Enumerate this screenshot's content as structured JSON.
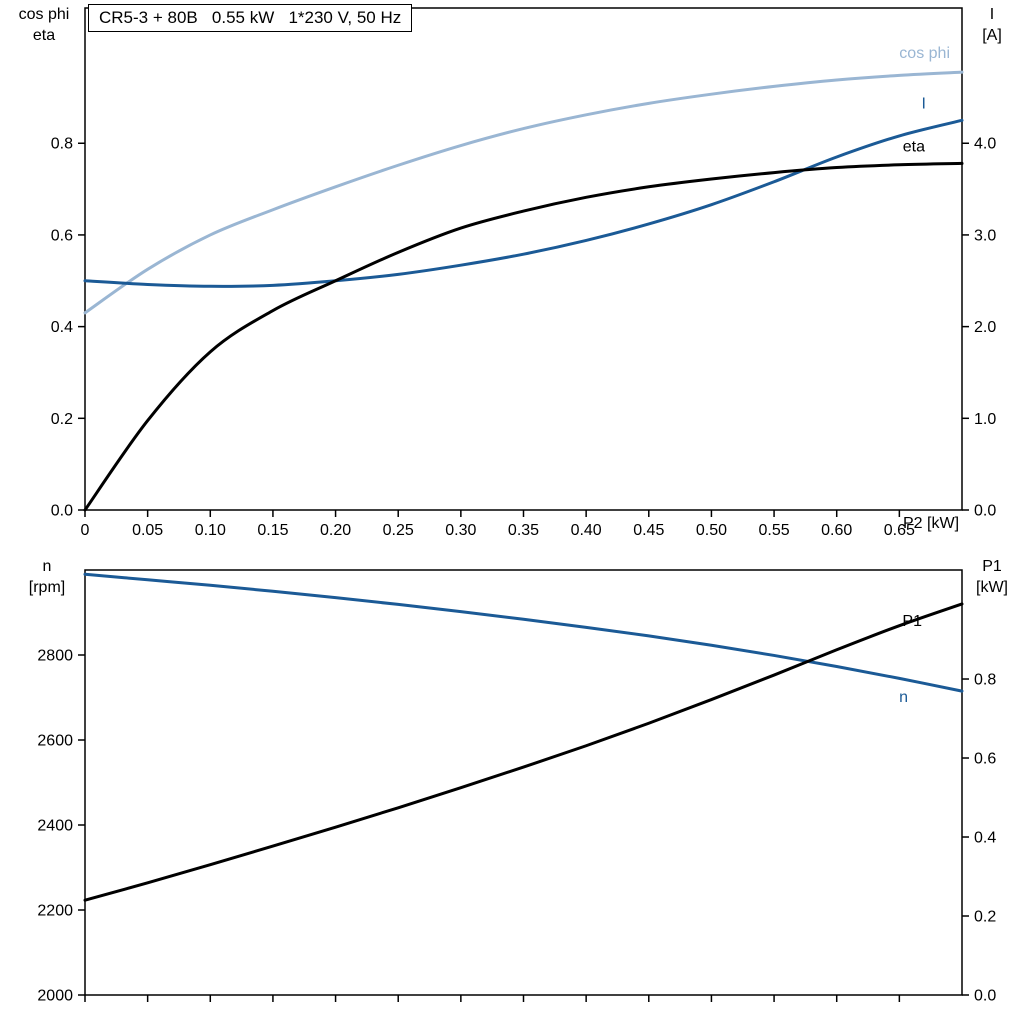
{
  "chart_data": [
    {
      "type": "line",
      "panel": "top",
      "title_box": "CR5-3 + 80B   0.55 kW   1*230 V, 50 Hz",
      "x_axis_label": "P2 [kW]",
      "x_range": [
        0,
        0.7
      ],
      "x": [
        0,
        0.05,
        0.1,
        0.15,
        0.2,
        0.25,
        0.3,
        0.35,
        0.4,
        0.45,
        0.5,
        0.55,
        0.6,
        0.65,
        0.7
      ],
      "x_ticks": [
        0,
        0.05,
        0.1,
        0.15,
        0.2,
        0.25,
        0.3,
        0.35,
        0.4,
        0.45,
        0.5,
        0.55,
        0.6,
        0.65
      ],
      "x_tick_labels": [
        "0",
        "0.05",
        "0.10",
        "0.15",
        "0.20",
        "0.25",
        "0.30",
        "0.35",
        "0.40",
        "0.45",
        "0.50",
        "0.55",
        "0.60",
        "0.65"
      ],
      "left_axis": {
        "title": [
          "cos phi",
          "eta"
        ],
        "range": [
          0,
          1.095
        ],
        "ticks": [
          0,
          0.2,
          0.4,
          0.6,
          0.8
        ],
        "tick_labels": [
          "0.0",
          "0.2",
          "0.4",
          "0.6",
          "0.8"
        ]
      },
      "right_axis": {
        "title": [
          "I",
          "[A]"
        ],
        "range": [
          0,
          5.475
        ],
        "ticks": [
          0,
          1,
          2,
          3,
          4
        ],
        "tick_labels": [
          "0.0",
          "1.0",
          "2.0",
          "3.0",
          "4.0"
        ]
      },
      "series": [
        {
          "name": "cos phi",
          "axis": "left",
          "color": "#9ab6d3",
          "label_offset": [
            -12,
            -14
          ],
          "values": [
            0.43,
            0.525,
            0.6,
            0.655,
            0.705,
            0.752,
            0.795,
            0.832,
            0.862,
            0.887,
            0.907,
            0.924,
            0.938,
            0.948,
            0.955
          ]
        },
        {
          "name": "I",
          "axis": "right",
          "color": "#1b5a96",
          "label_offset": [
            -36,
            -12
          ],
          "values": [
            2.5,
            2.46,
            2.44,
            2.45,
            2.5,
            2.57,
            2.67,
            2.79,
            2.94,
            3.12,
            3.33,
            3.58,
            3.85,
            4.08,
            4.25
          ]
        },
        {
          "name": "eta",
          "axis": "left",
          "color": "#000000",
          "label_offset": [
            -37,
            -12
          ],
          "values": [
            0,
            0.195,
            0.345,
            0.435,
            0.5,
            0.562,
            0.615,
            0.652,
            0.682,
            0.705,
            0.722,
            0.736,
            0.747,
            0.753,
            0.756
          ]
        }
      ]
    },
    {
      "type": "line",
      "panel": "bottom",
      "title_box": "",
      "x_axis_label": "",
      "x_range": [
        0,
        0.7
      ],
      "x": [
        0,
        0.05,
        0.1,
        0.15,
        0.2,
        0.25,
        0.3,
        0.35,
        0.4,
        0.45,
        0.5,
        0.55,
        0.6,
        0.65,
        0.7
      ],
      "x_ticks": [
        0,
        0.05,
        0.1,
        0.15,
        0.2,
        0.25,
        0.3,
        0.35,
        0.4,
        0.45,
        0.5,
        0.55,
        0.6,
        0.65
      ],
      "x_tick_labels": null,
      "left_axis": {
        "title": [
          "n",
          "[rpm]"
        ],
        "range": [
          2000,
          3000
        ],
        "ticks": [
          2000,
          2200,
          2400,
          2600,
          2800
        ],
        "tick_labels": [
          "2000",
          "2200",
          "2400",
          "2600",
          "2800"
        ]
      },
      "right_axis": {
        "title": [
          "P1",
          "[kW]"
        ],
        "range": [
          0,
          1.076
        ],
        "ticks": [
          0,
          0.2,
          0.4,
          0.6,
          0.8
        ],
        "tick_labels": [
          "0.0",
          "0.2",
          "0.4",
          "0.6",
          "0.8"
        ]
      },
      "series": [
        {
          "name": "n",
          "axis": "left",
          "color": "#1b5a96",
          "label_offset": [
            -54,
            11
          ],
          "values": [
            2990,
            2977,
            2964,
            2950,
            2935,
            2919,
            2902,
            2884,
            2865,
            2845,
            2823,
            2799,
            2773,
            2745,
            2715
          ]
        },
        {
          "name": "P1",
          "axis": "right",
          "color": "#000000",
          "label_offset": [
            -40,
            22
          ],
          "values": [
            0.24,
            0.284,
            0.33,
            0.377,
            0.425,
            0.474,
            0.525,
            0.577,
            0.631,
            0.688,
            0.748,
            0.81,
            0.874,
            0.935,
            0.99
          ]
        }
      ]
    }
  ]
}
